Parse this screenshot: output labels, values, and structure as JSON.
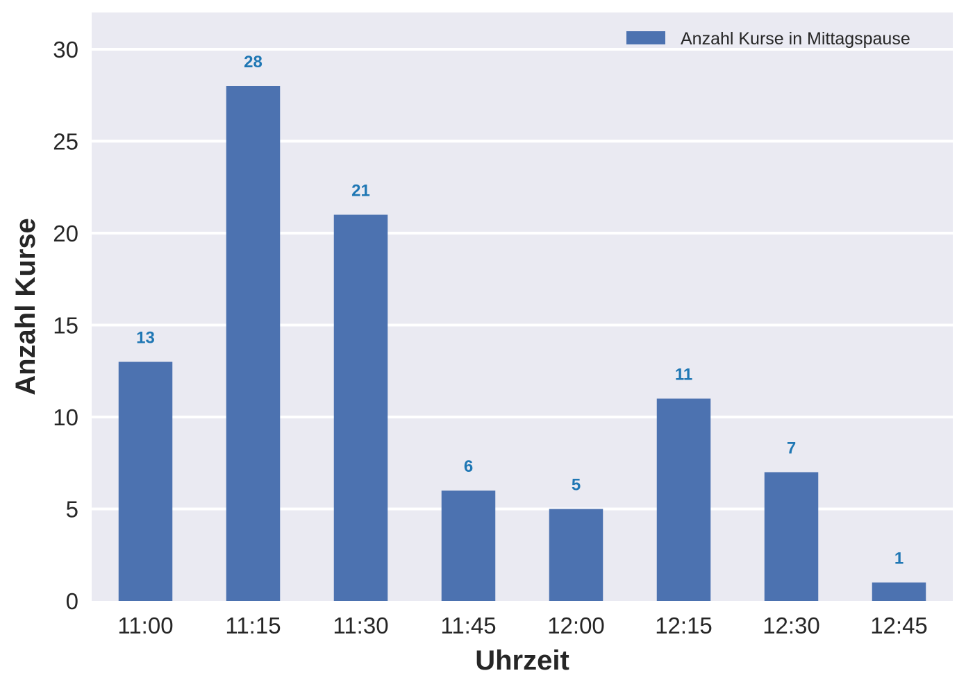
{
  "chart_data": {
    "type": "bar",
    "categories": [
      "11:00",
      "11:15",
      "11:30",
      "11:45",
      "12:00",
      "12:15",
      "12:30",
      "12:45"
    ],
    "series": [
      {
        "name": "Anzahl Kurse in Mittagspause",
        "values": [
          13,
          28,
          21,
          6,
          5,
          11,
          7,
          1
        ]
      }
    ],
    "data_labels": [
      "13",
      "28",
      "21",
      "6",
      "5",
      "11",
      "7",
      "1"
    ],
    "xlabel": "Uhrzeit",
    "ylabel": "Anzahl Kurse",
    "ylim": [
      0,
      32
    ],
    "yticks": [
      0,
      5,
      10,
      15,
      20,
      25,
      30
    ],
    "grid": true,
    "legend_position": "top-right",
    "colors": {
      "bar": "#4c72b0",
      "data_label": "#1f77b4",
      "plot_background": "#eaeaf2",
      "grid": "#ffffff"
    }
  }
}
